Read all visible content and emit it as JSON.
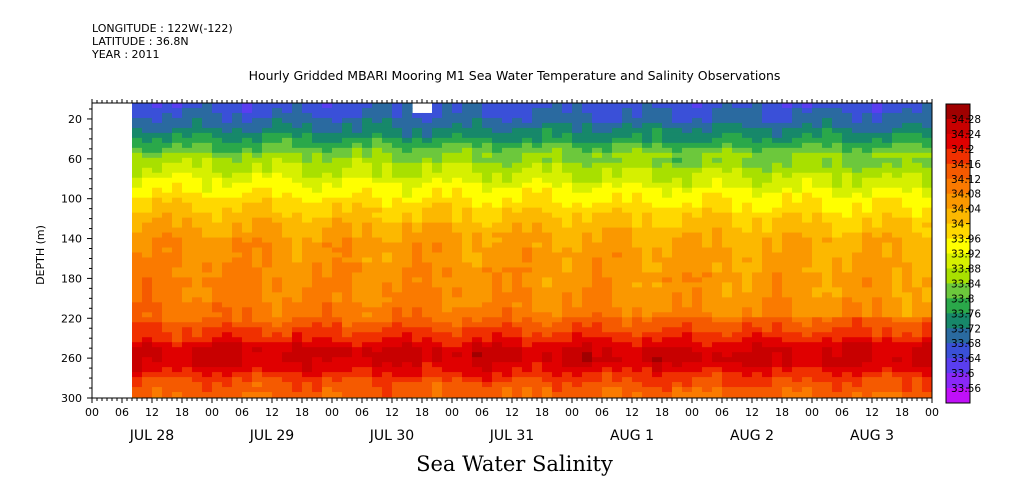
{
  "meta": {
    "longitude": "LONGITUDE : 122W(-122)",
    "latitude": "LATITUDE : 36.8N",
    "year": "YEAR : 2011"
  },
  "chart_data": {
    "type": "heatmap",
    "title": "Hourly Gridded MBARI Mooring M1 Sea Water Temperature and Salinity Observations",
    "xlabel": "Sea Water Salinity",
    "ylabel": "DEPTH (m)",
    "y_ticks": [
      20,
      60,
      100,
      140,
      180,
      220,
      260,
      300
    ],
    "ylim": [
      300,
      4
    ],
    "x_hour_ticks": [
      "00",
      "06",
      "12",
      "18",
      "00",
      "06",
      "12",
      "18",
      "00",
      "06",
      "12",
      "18",
      "00",
      "06",
      "12",
      "18",
      "00",
      "06",
      "12",
      "18",
      "00",
      "06",
      "12",
      "18",
      "00",
      "06",
      "12",
      "18",
      "00"
    ],
    "x_day_labels": [
      "JUL 28",
      "JUL 29",
      "JUL 30",
      "JUL 31",
      "AUG  1",
      "AUG  2",
      "AUG  3"
    ],
    "data_start_hour": 8,
    "missing_block": {
      "from_hour": 64,
      "to_hour": 68,
      "depth_from": 4,
      "depth_to": 16
    },
    "colorbar_levels": [
      "34.28",
      "34.24",
      "34.2",
      "34.16",
      "34.12",
      "34.08",
      "34.04",
      "34",
      "33.96",
      "33.92",
      "33.88",
      "33.84",
      "33.8",
      "33.76",
      "33.72",
      "33.68",
      "33.64",
      "33.6",
      "33.56"
    ],
    "colorbar_colors": [
      "#a00000",
      "#c80000",
      "#e00000",
      "#f03000",
      "#f55a00",
      "#fa7a00",
      "#fa9800",
      "#fcb800",
      "#ffd800",
      "#ffff00",
      "#d6f000",
      "#a8e000",
      "#6cc83c",
      "#2aa84a",
      "#17886a",
      "#2a6aa0",
      "#3a50d8",
      "#5a3ef0",
      "#8a28f8",
      "#c010f8"
    ],
    "profile_depths": [
      4,
      10,
      20,
      40,
      60,
      80,
      100,
      120,
      140,
      160,
      180,
      200,
      220,
      240,
      250,
      260,
      270,
      280,
      290,
      300
    ],
    "profile_salinity": [
      33.66,
      33.67,
      33.69,
      33.76,
      33.86,
      33.92,
      33.98,
      34.03,
      34.07,
      34.08,
      34.09,
      34.1,
      34.12,
      34.19,
      34.24,
      34.25,
      34.22,
      34.17,
      34.14,
      34.12
    ]
  }
}
